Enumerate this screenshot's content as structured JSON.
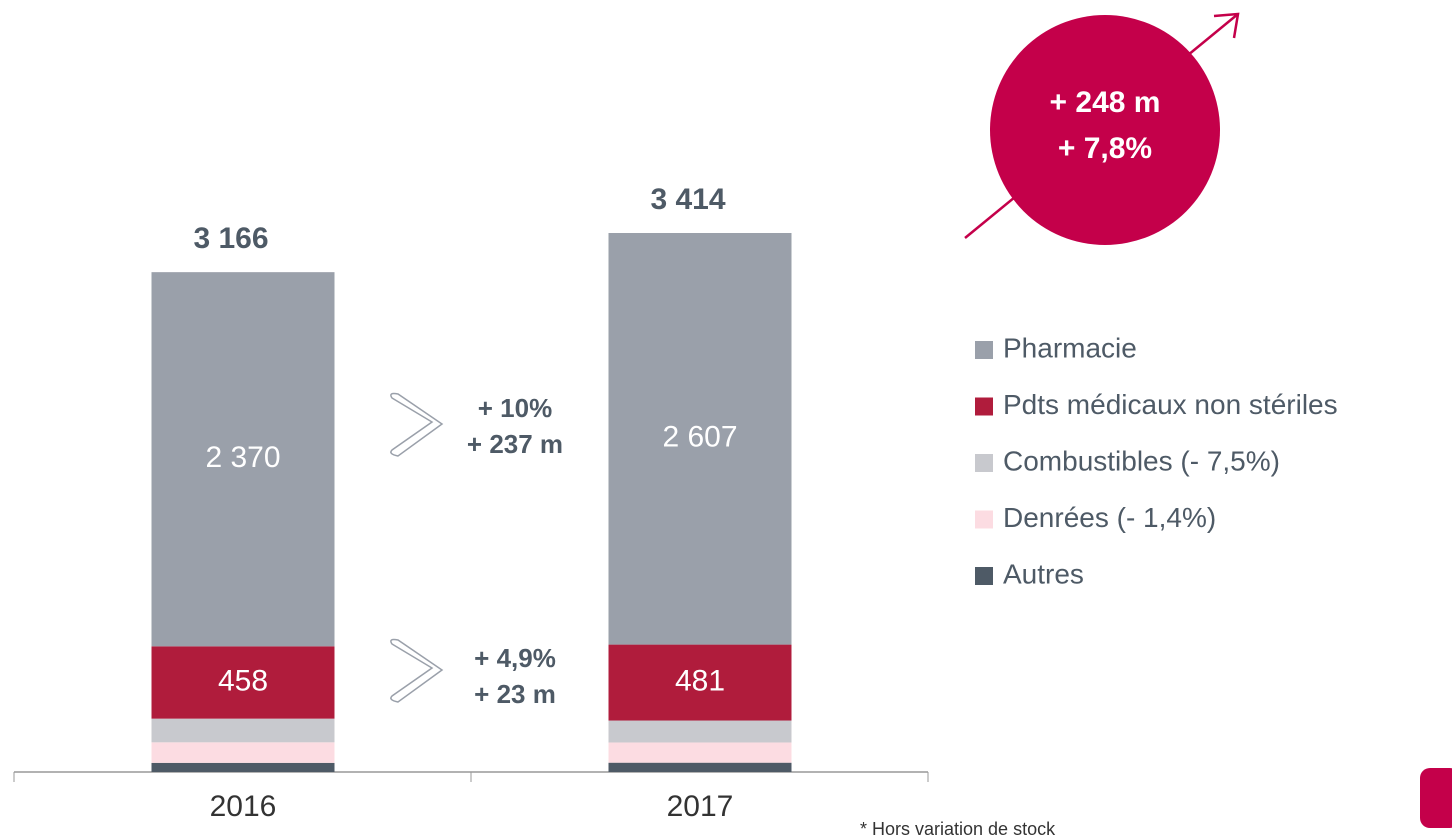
{
  "chart_data": {
    "type": "stacked_bar",
    "categories": [
      "2016",
      "2017"
    ],
    "series": [
      {
        "name": "Autres",
        "color": "#4e5a66",
        "values": [
          58,
          59
        ],
        "value_labels": [
          null,
          null
        ]
      },
      {
        "name": "Denrées (- 1,4%)",
        "color": "#fcdce2",
        "values": [
          130,
          128
        ],
        "value_labels": [
          null,
          null
        ]
      },
      {
        "name": "Combustibles (- 7,5%)",
        "color": "#c8c9ce",
        "values": [
          150,
          139
        ],
        "value_labels": [
          null,
          null
        ]
      },
      {
        "name": "Pdts médicaux non stériles",
        "color": "#b01c3c",
        "values": [
          458,
          481
        ],
        "value_labels": [
          "458",
          "481"
        ]
      },
      {
        "name": "Pharmacie",
        "color": "#9aa0aa",
        "values": [
          2370,
          2607
        ],
        "value_labels": [
          "2 370",
          "2 607"
        ]
      }
    ],
    "totals": [
      3166,
      3414
    ],
    "total_labels": [
      "3 166",
      "3 414"
    ],
    "growth_pharmacie": [
      "+ 10%",
      "+ 237 m"
    ],
    "growth_pdts": [
      "+ 4,9%",
      "+ 23 m"
    ],
    "growth_total": [
      "+ 248 m",
      "+ 7,8%"
    ],
    "footnote": "* Hors variation de stock"
  }
}
